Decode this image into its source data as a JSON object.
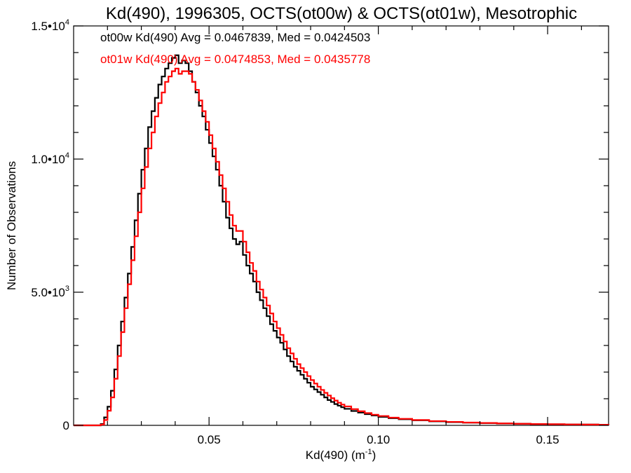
{
  "chart_data": {
    "type": "line",
    "title": "Kd(490), 1996305, OCTS(ot00w) & OCTS(ot01w), Mesotrophic",
    "xlabel_prefix": "Kd(490) (m",
    "xlabel_exp": "-1",
    "xlabel_suffix": ")",
    "ylabel": "Number of Observations",
    "xlim": [
      0.01,
      0.168
    ],
    "ylim": [
      0,
      15000
    ],
    "x_ticks": [
      {
        "value": 0.05,
        "label": "0.05"
      },
      {
        "value": 0.1,
        "label": "0.10"
      },
      {
        "value": 0.15,
        "label": "0.15"
      }
    ],
    "y_ticks": [
      {
        "value": 0,
        "mantissa": "0",
        "exp": ""
      },
      {
        "value": 5000,
        "mantissa": "5.0•10",
        "exp": "3"
      },
      {
        "value": 10000,
        "mantissa": "1.0•10",
        "exp": "4"
      },
      {
        "value": 15000,
        "mantissa": "1.5•10",
        "exp": "4"
      }
    ],
    "annotations": [
      {
        "text": "ot00w Kd(490) Avg = 0.0467839, Med = 0.0424503",
        "color": "#000000"
      },
      {
        "text": "ot01w Kd(490) Avg = 0.0474853, Med = 0.0435778",
        "color": "#ff0000"
      }
    ],
    "series": [
      {
        "color": "#000000",
        "points": [
          [
            0.01,
            0
          ],
          [
            0.017,
            0
          ],
          [
            0.018,
            50
          ],
          [
            0.019,
            300
          ],
          [
            0.02,
            700
          ],
          [
            0.021,
            1300
          ],
          [
            0.022,
            2100
          ],
          [
            0.023,
            3000
          ],
          [
            0.024,
            3900
          ],
          [
            0.025,
            4800
          ],
          [
            0.026,
            5700
          ],
          [
            0.027,
            6700
          ],
          [
            0.028,
            7700
          ],
          [
            0.029,
            8700
          ],
          [
            0.03,
            9600
          ],
          [
            0.031,
            10400
          ],
          [
            0.032,
            11200
          ],
          [
            0.033,
            11800
          ],
          [
            0.034,
            12300
          ],
          [
            0.035,
            12800
          ],
          [
            0.036,
            13100
          ],
          [
            0.037,
            13400
          ],
          [
            0.038,
            13600
          ],
          [
            0.039,
            13800
          ],
          [
            0.04,
            13900
          ],
          [
            0.041,
            13600
          ],
          [
            0.042,
            13700
          ],
          [
            0.043,
            13600
          ],
          [
            0.044,
            13300
          ],
          [
            0.045,
            12900
          ],
          [
            0.046,
            12500
          ],
          [
            0.047,
            12000
          ],
          [
            0.048,
            11600
          ],
          [
            0.049,
            11100
          ],
          [
            0.05,
            10600
          ],
          [
            0.051,
            10100
          ],
          [
            0.052,
            9600
          ],
          [
            0.053,
            9000
          ],
          [
            0.054,
            8400
          ],
          [
            0.055,
            7800
          ],
          [
            0.056,
            7400
          ],
          [
            0.057,
            7000
          ],
          [
            0.058,
            6800
          ],
          [
            0.059,
            6900
          ],
          [
            0.06,
            6400
          ],
          [
            0.061,
            6000
          ],
          [
            0.062,
            5700
          ],
          [
            0.063,
            5400
          ],
          [
            0.064,
            5000
          ],
          [
            0.065,
            4700
          ],
          [
            0.066,
            4400
          ],
          [
            0.067,
            4100
          ],
          [
            0.068,
            3800
          ],
          [
            0.069,
            3550
          ],
          [
            0.07,
            3300
          ],
          [
            0.071,
            3100
          ],
          [
            0.072,
            2850
          ],
          [
            0.073,
            2600
          ],
          [
            0.074,
            2400
          ],
          [
            0.075,
            2200
          ],
          [
            0.076,
            2050
          ],
          [
            0.077,
            1900
          ],
          [
            0.078,
            1750
          ],
          [
            0.079,
            1600
          ],
          [
            0.08,
            1450
          ],
          [
            0.081,
            1350
          ],
          [
            0.082,
            1250
          ],
          [
            0.083,
            1150
          ],
          [
            0.084,
            1050
          ],
          [
            0.085,
            950
          ],
          [
            0.086,
            880
          ],
          [
            0.087,
            800
          ],
          [
            0.088,
            740
          ],
          [
            0.089,
            680
          ],
          [
            0.09,
            620
          ],
          [
            0.092,
            540
          ],
          [
            0.094,
            480
          ],
          [
            0.096,
            420
          ],
          [
            0.098,
            370
          ],
          [
            0.1,
            320
          ],
          [
            0.103,
            270
          ],
          [
            0.106,
            230
          ],
          [
            0.11,
            190
          ],
          [
            0.115,
            150
          ],
          [
            0.12,
            120
          ],
          [
            0.125,
            100
          ],
          [
            0.13,
            85
          ],
          [
            0.135,
            70
          ],
          [
            0.14,
            60
          ],
          [
            0.145,
            50
          ],
          [
            0.15,
            40
          ],
          [
            0.155,
            35
          ],
          [
            0.16,
            30
          ],
          [
            0.165,
            25
          ],
          [
            0.168,
            20
          ]
        ]
      },
      {
        "color": "#ff0000",
        "points": [
          [
            0.01,
            0
          ],
          [
            0.017,
            0
          ],
          [
            0.018,
            30
          ],
          [
            0.019,
            200
          ],
          [
            0.02,
            550
          ],
          [
            0.021,
            1050
          ],
          [
            0.022,
            1750
          ],
          [
            0.023,
            2600
          ],
          [
            0.024,
            3500
          ],
          [
            0.025,
            4400
          ],
          [
            0.026,
            5300
          ],
          [
            0.027,
            6200
          ],
          [
            0.028,
            7100
          ],
          [
            0.029,
            8000
          ],
          [
            0.03,
            8900
          ],
          [
            0.031,
            9700
          ],
          [
            0.032,
            10400
          ],
          [
            0.033,
            11000
          ],
          [
            0.034,
            11600
          ],
          [
            0.035,
            12100
          ],
          [
            0.036,
            12500
          ],
          [
            0.037,
            12900
          ],
          [
            0.038,
            13100
          ],
          [
            0.039,
            13300
          ],
          [
            0.04,
            13400
          ],
          [
            0.041,
            13200
          ],
          [
            0.042,
            13300
          ],
          [
            0.043,
            13300
          ],
          [
            0.044,
            13200
          ],
          [
            0.045,
            12900
          ],
          [
            0.046,
            12600
          ],
          [
            0.047,
            12200
          ],
          [
            0.048,
            11800
          ],
          [
            0.049,
            11400
          ],
          [
            0.05,
            10900
          ],
          [
            0.051,
            10400
          ],
          [
            0.052,
            9900
          ],
          [
            0.053,
            9400
          ],
          [
            0.054,
            8900
          ],
          [
            0.055,
            8400
          ],
          [
            0.056,
            7900
          ],
          [
            0.057,
            7500
          ],
          [
            0.058,
            7300
          ],
          [
            0.059,
            7300
          ],
          [
            0.06,
            6900
          ],
          [
            0.061,
            6500
          ],
          [
            0.062,
            6100
          ],
          [
            0.063,
            5800
          ],
          [
            0.064,
            5400
          ],
          [
            0.065,
            5100
          ],
          [
            0.066,
            4800
          ],
          [
            0.067,
            4500
          ],
          [
            0.068,
            4200
          ],
          [
            0.069,
            3900
          ],
          [
            0.07,
            3650
          ],
          [
            0.071,
            3400
          ],
          [
            0.072,
            3150
          ],
          [
            0.073,
            2900
          ],
          [
            0.074,
            2700
          ],
          [
            0.075,
            2500
          ],
          [
            0.076,
            2300
          ],
          [
            0.077,
            2150
          ],
          [
            0.078,
            2000
          ],
          [
            0.079,
            1850
          ],
          [
            0.08,
            1700
          ],
          [
            0.081,
            1570
          ],
          [
            0.082,
            1450
          ],
          [
            0.083,
            1330
          ],
          [
            0.084,
            1220
          ],
          [
            0.085,
            1120
          ],
          [
            0.086,
            1020
          ],
          [
            0.087,
            930
          ],
          [
            0.088,
            850
          ],
          [
            0.089,
            780
          ],
          [
            0.09,
            710
          ],
          [
            0.092,
            610
          ],
          [
            0.094,
            530
          ],
          [
            0.096,
            460
          ],
          [
            0.098,
            400
          ],
          [
            0.1,
            350
          ],
          [
            0.103,
            290
          ],
          [
            0.106,
            245
          ],
          [
            0.11,
            200
          ],
          [
            0.115,
            160
          ],
          [
            0.12,
            130
          ],
          [
            0.125,
            105
          ],
          [
            0.13,
            88
          ],
          [
            0.135,
            72
          ],
          [
            0.14,
            60
          ],
          [
            0.145,
            50
          ],
          [
            0.15,
            42
          ],
          [
            0.155,
            35
          ],
          [
            0.16,
            30
          ],
          [
            0.165,
            25
          ],
          [
            0.168,
            20
          ]
        ]
      }
    ]
  }
}
